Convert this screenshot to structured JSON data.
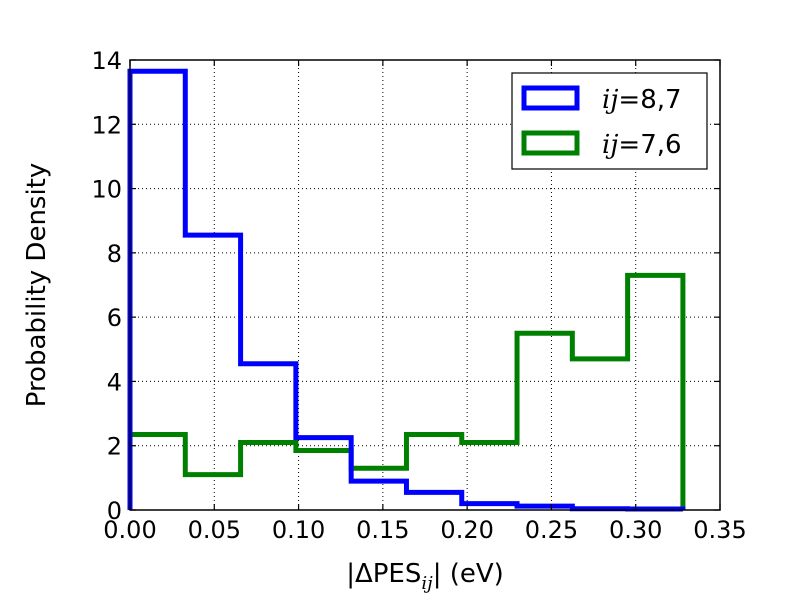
{
  "chart_data": {
    "type": "histogram",
    "title": "",
    "xlabel": {
      "prefix": "|ΔPES",
      "sub": "ij",
      "suffix": "| (eV)"
    },
    "ylabel": "Probability Density",
    "xlim": [
      0.0,
      0.35
    ],
    "ylim": [
      0,
      14
    ],
    "xticks": [
      "0.00",
      "0.05",
      "0.10",
      "0.15",
      "0.20",
      "0.25",
      "0.30",
      "0.35"
    ],
    "yticks": [
      "0",
      "2",
      "4",
      "6",
      "8",
      "10",
      "12",
      "14"
    ],
    "grid": true,
    "legend_position": "top-right",
    "bin_edges": [
      0.0,
      0.0328,
      0.0656,
      0.0984,
      0.1312,
      0.164,
      0.1968,
      0.2296,
      0.2624,
      0.2952,
      0.328
    ],
    "series": [
      {
        "name": "ij=8,7",
        "legend_var": "ij",
        "legend_eq": "=",
        "legend_val": "8,7",
        "color": "#0000ff",
        "values": [
          13.65,
          8.55,
          4.55,
          2.25,
          0.9,
          0.55,
          0.2,
          0.12,
          0.04,
          0.03
        ]
      },
      {
        "name": "ij=7,6",
        "legend_var": "ij",
        "legend_eq": "=",
        "legend_val": "7,6",
        "color": "#008000",
        "values": [
          2.35,
          1.1,
          2.1,
          1.85,
          1.3,
          2.35,
          2.1,
          5.5,
          4.7,
          7.3
        ]
      }
    ]
  }
}
